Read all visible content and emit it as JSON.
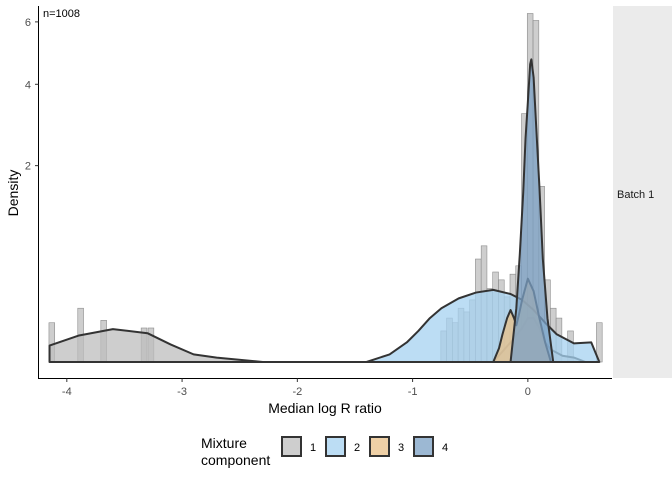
{
  "chart_data": {
    "type": "histogram+density",
    "xlabel": "Median log R ratio",
    "ylabel": "Density",
    "annotation": "n=1008",
    "facet_label": "Batch 1",
    "x_ticks": [
      "-4",
      "-3",
      "-2",
      "-1",
      "0"
    ],
    "x_tick_values": [
      -4,
      -3,
      -2,
      -1,
      0
    ],
    "y_ticks": [
      "2",
      "4",
      "6"
    ],
    "y_tick_values": [
      2,
      4,
      6
    ],
    "y_scale": "sqrt",
    "xlim": [
      -4.25,
      0.73
    ],
    "ylim": [
      0,
      6.5
    ],
    "legend": {
      "title_line1": "Mixture",
      "title_line2": "component",
      "position": "bottom",
      "entries": [
        {
          "label": "1",
          "color": "#bdbdbd"
        },
        {
          "label": "2",
          "color": "#a6d1f0"
        },
        {
          "label": "3",
          "color": "#e9c088"
        },
        {
          "label": "4",
          "color": "#7ba0c4"
        }
      ]
    },
    "histogram": {
      "bin_width": 0.05,
      "bins": [
        {
          "x": -4.13,
          "y": 0.08
        },
        {
          "x": -3.88,
          "y": 0.15
        },
        {
          "x": -3.68,
          "y": 0.09
        },
        {
          "x": -3.33,
          "y": 0.06
        },
        {
          "x": -3.27,
          "y": 0.06
        },
        {
          "x": -0.73,
          "y": 0.05
        },
        {
          "x": -0.68,
          "y": 0.1
        },
        {
          "x": -0.63,
          "y": 0.08
        },
        {
          "x": -0.58,
          "y": 0.15
        },
        {
          "x": -0.53,
          "y": 0.13
        },
        {
          "x": -0.48,
          "y": 0.2
        },
        {
          "x": -0.43,
          "y": 0.55
        },
        {
          "x": -0.38,
          "y": 0.7
        },
        {
          "x": -0.33,
          "y": 0.28
        },
        {
          "x": -0.28,
          "y": 0.42
        },
        {
          "x": -0.23,
          "y": 0.35
        },
        {
          "x": -0.18,
          "y": 0.22
        },
        {
          "x": -0.13,
          "y": 0.4
        },
        {
          "x": -0.08,
          "y": 0.48
        },
        {
          "x": -0.03,
          "y": 3.2
        },
        {
          "x": 0.02,
          "y": 6.3
        },
        {
          "x": 0.07,
          "y": 6.05
        },
        {
          "x": 0.12,
          "y": 1.6
        },
        {
          "x": 0.17,
          "y": 0.35
        },
        {
          "x": 0.22,
          "y": 0.15
        },
        {
          "x": 0.27,
          "y": 0.1
        },
        {
          "x": 0.37,
          "y": 0.05
        },
        {
          "x": 0.62,
          "y": 0.08
        }
      ]
    },
    "series": [
      {
        "name": "1",
        "color": "#bdbdbd",
        "x": [
          -4.15,
          -3.9,
          -3.6,
          -3.3,
          -3.1,
          -2.9,
          -2.7,
          -2.3,
          -1.9,
          -1.5,
          -1.2,
          -0.95,
          -0.7,
          -0.5,
          -0.3,
          -0.15,
          -0.05,
          0.0,
          0.05,
          0.1,
          0.15,
          0.2,
          0.3,
          0.4,
          0.5,
          0.6
        ],
        "y": [
          0.014,
          0.036,
          0.056,
          0.043,
          0.016,
          0.003,
          0.001,
          0.0,
          0.0,
          0.0,
          0.0,
          0.0,
          0.0,
          0.0,
          0.0,
          0.02,
          0.06,
          0.1,
          0.1,
          0.06,
          0.02,
          0.008,
          0.002,
          0.001,
          0.0,
          0.0
        ]
      },
      {
        "name": "2",
        "color": "#a6d1f0",
        "x": [
          -1.4,
          -1.2,
          -1.05,
          -0.95,
          -0.85,
          -0.75,
          -0.6,
          -0.45,
          -0.3,
          -0.15,
          -0.05,
          0.05,
          0.15,
          0.25,
          0.4,
          0.55,
          0.62
        ],
        "y": [
          0.0,
          0.003,
          0.02,
          0.05,
          0.1,
          0.15,
          0.21,
          0.25,
          0.27,
          0.24,
          0.2,
          0.14,
          0.08,
          0.04,
          0.018,
          0.02,
          0.0
        ]
      },
      {
        "name": "3",
        "color": "#e9c088",
        "x": [
          -0.3,
          -0.25,
          -0.22,
          -0.18,
          -0.15,
          -0.12,
          -0.1,
          -0.08,
          -0.05,
          0.0,
          0.05,
          0.1,
          0.15,
          0.2
        ],
        "y": [
          0.0,
          0.01,
          0.04,
          0.1,
          0.14,
          0.1,
          0.07,
          0.11,
          0.2,
          0.36,
          0.26,
          0.1,
          0.02,
          0.0
        ]
      },
      {
        "name": "4",
        "color": "#7ba0c4",
        "x": [
          -0.15,
          -0.1,
          -0.07,
          -0.04,
          -0.02,
          0.0,
          0.02,
          0.03,
          0.05,
          0.07,
          0.1,
          0.13,
          0.17,
          0.22
        ],
        "y": [
          0.0,
          0.15,
          0.6,
          1.5,
          2.6,
          3.5,
          4.6,
          4.75,
          4.2,
          3.0,
          1.6,
          0.55,
          0.1,
          0.0
        ]
      }
    ]
  }
}
